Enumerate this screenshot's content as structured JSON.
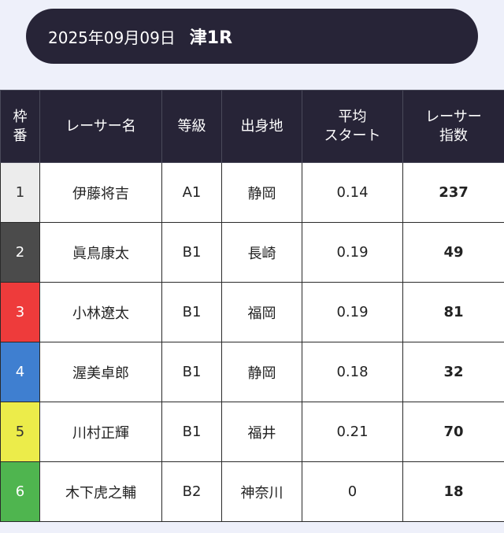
{
  "header": {
    "date": "2025年09月09日",
    "race": "津1R"
  },
  "table": {
    "columns": [
      "枠\n番",
      "レーサー名",
      "等級",
      "出身地",
      "平均\nスタート",
      "レーサー\n指数"
    ],
    "rows": [
      {
        "frame": "1",
        "frame_color": "#ececec",
        "frame_text_color": "#333333",
        "name": "伊藤将吉",
        "grade": "A1",
        "hometown": "静岡",
        "avg_start": "0.14",
        "index": "237"
      },
      {
        "frame": "2",
        "frame_color": "#4b4b4b",
        "frame_text_color": "#ffffff",
        "name": "眞鳥康太",
        "grade": "B1",
        "hometown": "長崎",
        "avg_start": "0.19",
        "index": "49"
      },
      {
        "frame": "3",
        "frame_color": "#ee3b3b",
        "frame_text_color": "#ffffff",
        "name": "小林遼太",
        "grade": "B1",
        "hometown": "福岡",
        "avg_start": "0.19",
        "index": "81"
      },
      {
        "frame": "4",
        "frame_color": "#3f7fd0",
        "frame_text_color": "#ffffff",
        "name": "渥美卓郎",
        "grade": "B1",
        "hometown": "静岡",
        "avg_start": "0.18",
        "index": "32"
      },
      {
        "frame": "5",
        "frame_color": "#ecec4a",
        "frame_text_color": "#333333",
        "name": "川村正輝",
        "grade": "B1",
        "hometown": "福井",
        "avg_start": "0.21",
        "index": "70"
      },
      {
        "frame": "6",
        "frame_color": "#4fb54f",
        "frame_text_color": "#ffffff",
        "name": "木下虎之輔",
        "grade": "B2",
        "hometown": "神奈川",
        "avg_start": "0",
        "index": "18"
      }
    ]
  }
}
